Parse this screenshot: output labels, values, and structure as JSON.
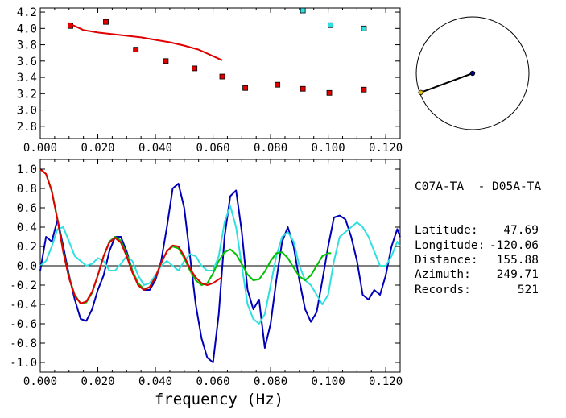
{
  "chart_data": [
    {
      "type": "scatter",
      "xlim": [
        0.0,
        0.125
      ],
      "ylim": [
        2.65,
        4.25
      ],
      "xticks": [
        0.0,
        0.02,
        0.04,
        0.06,
        0.08,
        0.1,
        0.12
      ],
      "xtick_labels": [
        "0.000",
        "0.020",
        "0.040",
        "0.060",
        "0.080",
        "0.100",
        "0.120"
      ],
      "yticks": [
        2.8,
        3.0,
        3.2,
        3.4,
        3.6,
        3.8,
        4.0,
        4.2
      ],
      "ytick_labels": [
        "2.8",
        "3.0",
        "3.2",
        "3.4",
        "3.6",
        "3.8",
        "4.0",
        "4.2"
      ],
      "series": [
        {
          "marker": "square",
          "color": "#e00000",
          "x": [
            0.0105,
            0.0228,
            0.0332,
            0.0436,
            0.0536,
            0.0632,
            0.0712,
            0.0824,
            0.0912,
            0.1004,
            0.1124
          ],
          "y": [
            4.03,
            4.08,
            3.74,
            3.6,
            3.51,
            3.41,
            3.27,
            3.31,
            3.26,
            3.21,
            3.25
          ]
        },
        {
          "marker": "square",
          "color": "#30e0e0",
          "x": [
            0.0912,
            0.1008,
            0.1124
          ],
          "y": [
            4.22,
            4.04,
            4.0
          ]
        },
        {
          "marker": "line",
          "color": "#e00000",
          "x": [
            0.0095,
            0.015,
            0.02,
            0.025,
            0.03,
            0.035,
            0.04,
            0.045,
            0.05,
            0.055,
            0.06,
            0.0632
          ],
          "y": [
            4.07,
            3.98,
            3.95,
            3.93,
            3.91,
            3.89,
            3.86,
            3.83,
            3.79,
            3.74,
            3.66,
            3.61
          ]
        }
      ],
      "grid": false
    },
    {
      "type": "line",
      "xlabel": "frequency (Hz)",
      "xlim": [
        0.0,
        0.125
      ],
      "ylim": [
        -1.1,
        1.1
      ],
      "xticks": [
        0.0,
        0.02,
        0.04,
        0.06,
        0.08,
        0.1,
        0.12
      ],
      "xtick_labels": [
        "0.000",
        "0.020",
        "0.040",
        "0.060",
        "0.080",
        "0.100",
        "0.120"
      ],
      "yticks": [
        -1.0,
        -0.8,
        -0.6,
        -0.4,
        -0.2,
        0.0,
        0.2,
        0.4,
        0.6,
        0.8,
        1.0
      ],
      "ytick_labels": [
        "-1.0",
        "-0.8",
        "-0.6",
        "-0.4",
        "-0.2",
        "0.0",
        "0.2",
        "0.4",
        "0.6",
        "0.8",
        "1.0"
      ],
      "zero_line": true,
      "series": [
        {
          "color": "#0000b8",
          "x": [
            0.0,
            0.002,
            0.004,
            0.006,
            0.008,
            0.01,
            0.012,
            0.014,
            0.016,
            0.018,
            0.02,
            0.022,
            0.024,
            0.026,
            0.028,
            0.03,
            0.032,
            0.034,
            0.036,
            0.038,
            0.04,
            0.042,
            0.044,
            0.046,
            0.048,
            0.05,
            0.052,
            0.054,
            0.056,
            0.058,
            0.06,
            0.062,
            0.064,
            0.066,
            0.068,
            0.07,
            0.072,
            0.074,
            0.076,
            0.078,
            0.08,
            0.082,
            0.084,
            0.086,
            0.088,
            0.09,
            0.092,
            0.094,
            0.096,
            0.098,
            0.1,
            0.102,
            0.104,
            0.106,
            0.108,
            0.11,
            0.112,
            0.114,
            0.116,
            0.118,
            0.12,
            0.122,
            0.124,
            0.125
          ],
          "y": [
            -0.05,
            0.3,
            0.25,
            0.48,
            0.2,
            -0.1,
            -0.35,
            -0.55,
            -0.57,
            -0.45,
            -0.25,
            -0.1,
            0.15,
            0.3,
            0.3,
            0.15,
            -0.05,
            -0.2,
            -0.25,
            -0.25,
            -0.15,
            0.05,
            0.4,
            0.8,
            0.85,
            0.6,
            0.1,
            -0.4,
            -0.75,
            -0.95,
            -1.0,
            -0.5,
            0.3,
            0.72,
            0.78,
            0.35,
            -0.25,
            -0.45,
            -0.35,
            -0.85,
            -0.6,
            -0.15,
            0.25,
            0.4,
            0.2,
            -0.15,
            -0.45,
            -0.58,
            -0.48,
            -0.15,
            0.2,
            0.5,
            0.52,
            0.48,
            0.3,
            0.05,
            -0.3,
            -0.35,
            -0.25,
            -0.3,
            -0.1,
            0.2,
            0.38,
            0.3
          ]
        },
        {
          "color": "#30e0e0",
          "x": [
            0.0,
            0.002,
            0.004,
            0.006,
            0.008,
            0.01,
            0.012,
            0.014,
            0.016,
            0.018,
            0.02,
            0.022,
            0.024,
            0.026,
            0.028,
            0.03,
            0.032,
            0.034,
            0.036,
            0.038,
            0.04,
            0.042,
            0.044,
            0.046,
            0.048,
            0.05,
            0.052,
            0.054,
            0.056,
            0.058,
            0.06,
            0.062,
            0.064,
            0.066,
            0.068,
            0.07,
            0.072,
            0.074,
            0.076,
            0.078,
            0.08,
            0.082,
            0.084,
            0.086,
            0.088,
            0.09,
            0.092,
            0.094,
            0.096,
            0.098,
            0.1,
            0.102,
            0.104,
            0.106,
            0.108,
            0.11,
            0.112,
            0.114,
            0.116,
            0.118,
            0.12,
            0.122,
            0.124,
            0.125
          ],
          "y": [
            0.0,
            0.05,
            0.2,
            0.38,
            0.4,
            0.25,
            0.1,
            0.05,
            0.0,
            0.02,
            0.08,
            0.05,
            -0.05,
            -0.05,
            0.02,
            0.1,
            0.05,
            -0.1,
            -0.2,
            -0.18,
            -0.1,
            0.0,
            0.05,
            0.0,
            -0.05,
            0.05,
            0.12,
            0.1,
            0.0,
            -0.05,
            -0.05,
            0.1,
            0.45,
            0.62,
            0.4,
            0.0,
            -0.4,
            -0.55,
            -0.6,
            -0.5,
            -0.2,
            0.1,
            0.3,
            0.35,
            0.25,
            0.0,
            -0.15,
            -0.2,
            -0.3,
            -0.4,
            -0.3,
            0.05,
            0.3,
            0.35,
            0.4,
            0.45,
            0.4,
            0.3,
            0.15,
            0.0,
            0.0,
            0.1,
            0.25,
            0.2
          ]
        },
        {
          "color": "#00c000",
          "x": [
            0.0,
            0.002,
            0.004,
            0.006,
            0.008,
            0.01,
            0.012,
            0.014,
            0.016,
            0.018,
            0.02,
            0.022,
            0.024,
            0.026,
            0.028,
            0.03,
            0.032,
            0.034,
            0.036,
            0.038,
            0.04,
            0.042,
            0.044,
            0.046,
            0.048,
            0.05,
            0.052,
            0.054,
            0.056,
            0.058,
            0.06,
            0.062,
            0.064,
            0.066,
            0.068,
            0.07,
            0.072,
            0.074,
            0.076,
            0.078,
            0.08,
            0.082,
            0.084,
            0.086,
            0.088,
            0.09,
            0.092,
            0.094,
            0.096,
            0.098,
            0.1,
            0.101
          ],
          "y": [
            1.0,
            0.95,
            0.78,
            0.48,
            0.15,
            -0.12,
            -0.3,
            -0.39,
            -0.38,
            -0.28,
            -0.1,
            0.1,
            0.25,
            0.3,
            0.26,
            0.12,
            -0.05,
            -0.18,
            -0.24,
            -0.22,
            -0.12,
            0.03,
            0.15,
            0.2,
            0.18,
            0.08,
            -0.05,
            -0.15,
            -0.2,
            -0.18,
            -0.08,
            0.05,
            0.14,
            0.17,
            0.12,
            0.02,
            -0.09,
            -0.15,
            -0.14,
            -0.06,
            0.05,
            0.13,
            0.14,
            0.08,
            -0.02,
            -0.11,
            -0.15,
            -0.1,
            0.0,
            0.1,
            0.13,
            0.13
          ]
        },
        {
          "color": "#e00000",
          "x": [
            0.0,
            0.002,
            0.004,
            0.006,
            0.008,
            0.01,
            0.012,
            0.014,
            0.016,
            0.018,
            0.02,
            0.022,
            0.024,
            0.026,
            0.028,
            0.03,
            0.032,
            0.034,
            0.036,
            0.038,
            0.04,
            0.042,
            0.044,
            0.046,
            0.048,
            0.05,
            0.052,
            0.054,
            0.056,
            0.058,
            0.06,
            0.062,
            0.063
          ],
          "y": [
            1.0,
            0.95,
            0.77,
            0.47,
            0.14,
            -0.13,
            -0.31,
            -0.39,
            -0.37,
            -0.27,
            -0.1,
            0.1,
            0.24,
            0.29,
            0.24,
            0.1,
            -0.07,
            -0.2,
            -0.25,
            -0.22,
            -0.12,
            0.03,
            0.15,
            0.21,
            0.2,
            0.1,
            -0.03,
            -0.12,
            -0.18,
            -0.2,
            -0.18,
            -0.14,
            -0.12
          ]
        }
      ],
      "grid": false
    }
  ],
  "map": {
    "end_point_color": "#000080",
    "start_point_color": "#e0c000",
    "azimuth_deg": 249.71
  },
  "info": {
    "pair": "C07A-TA  - D05A-TA",
    "rows": [
      {
        "label": "Latitude:",
        "value": "47.69"
      },
      {
        "label": "Longitude:",
        "value": "-120.06"
      },
      {
        "label": "Distance:",
        "value": "155.88"
      },
      {
        "label": "Azimuth:",
        "value": "249.71"
      },
      {
        "label": "Records:",
        "value": "521"
      }
    ]
  }
}
